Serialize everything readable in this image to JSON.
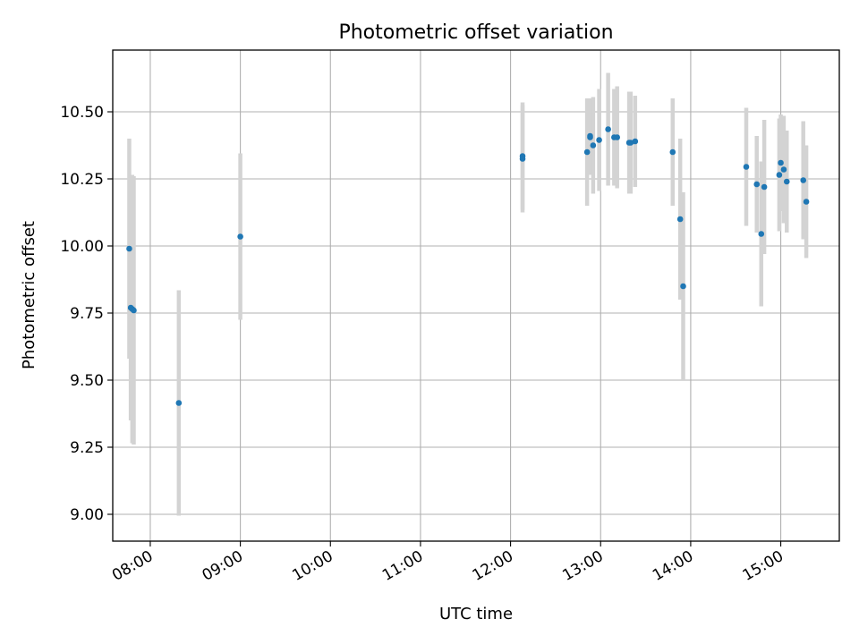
{
  "chart_data": {
    "type": "scatter",
    "title": "Photometric offset variation",
    "xlabel": "UTC time",
    "ylabel": "Photometric offset",
    "x_unit": "time of day (UTC)",
    "xlim": [
      "07:35",
      "15:39"
    ],
    "ylim": [
      8.9,
      10.73
    ],
    "x_ticks": [
      "08:00",
      "09:00",
      "10:00",
      "11:00",
      "12:00",
      "13:00",
      "14:00",
      "15:00"
    ],
    "y_ticks": [
      9.0,
      9.25,
      9.5,
      9.75,
      10.0,
      10.25,
      10.5
    ],
    "y_tick_labels": [
      "9.00",
      "9.25",
      "9.50",
      "9.75",
      "10.00",
      "10.25",
      "10.50"
    ],
    "grid": true,
    "colors": {
      "point": "#1f77b4",
      "error_bar": "#d3d3d3"
    },
    "series": [
      {
        "points": [
          {
            "x": "07:46",
            "y": 9.99,
            "err": 0.41
          },
          {
            "x": "07:47",
            "y": 9.77,
            "err": 0.42
          },
          {
            "x": "07:48",
            "y": 9.765,
            "err": 0.5
          },
          {
            "x": "07:49",
            "y": 9.76,
            "err": 0.5
          },
          {
            "x": "08:19",
            "y": 9.415,
            "err": 0.42
          },
          {
            "x": "09:00",
            "y": 10.035,
            "err": 0.31
          },
          {
            "x": "12:08",
            "y": 10.335,
            "err": 0.2
          },
          {
            "x": "12:08",
            "y": 10.325,
            "err": 0.2
          },
          {
            "x": "12:51",
            "y": 10.35,
            "err": 0.2
          },
          {
            "x": "12:53",
            "y": 10.405,
            "err": 0.14
          },
          {
            "x": "12:53",
            "y": 10.41,
            "err": 0.14
          },
          {
            "x": "12:55",
            "y": 10.375,
            "err": 0.18
          },
          {
            "x": "12:59",
            "y": 10.395,
            "err": 0.19
          },
          {
            "x": "13:05",
            "y": 10.435,
            "err": 0.21
          },
          {
            "x": "13:09",
            "y": 10.405,
            "err": 0.18
          },
          {
            "x": "13:11",
            "y": 10.405,
            "err": 0.19
          },
          {
            "x": "13:19",
            "y": 10.385,
            "err": 0.19
          },
          {
            "x": "13:20",
            "y": 10.385,
            "err": 0.19
          },
          {
            "x": "13:23",
            "y": 10.39,
            "err": 0.17
          },
          {
            "x": "13:48",
            "y": 10.35,
            "err": 0.2
          },
          {
            "x": "13:53",
            "y": 10.1,
            "err": 0.3
          },
          {
            "x": "13:55",
            "y": 9.85,
            "err": 0.35
          },
          {
            "x": "14:37",
            "y": 10.295,
            "err": 0.22
          },
          {
            "x": "14:44",
            "y": 10.23,
            "err": 0.18
          },
          {
            "x": "14:47",
            "y": 10.045,
            "err": 0.27
          },
          {
            "x": "14:49",
            "y": 10.22,
            "err": 0.25
          },
          {
            "x": "14:59",
            "y": 10.265,
            "err": 0.21
          },
          {
            "x": "15:00",
            "y": 10.31,
            "err": 0.18
          },
          {
            "x": "15:02",
            "y": 10.285,
            "err": 0.2
          },
          {
            "x": "15:04",
            "y": 10.24,
            "err": 0.19
          },
          {
            "x": "15:15",
            "y": 10.245,
            "err": 0.22
          },
          {
            "x": "15:17",
            "y": 10.165,
            "err": 0.21
          }
        ]
      }
    ]
  }
}
